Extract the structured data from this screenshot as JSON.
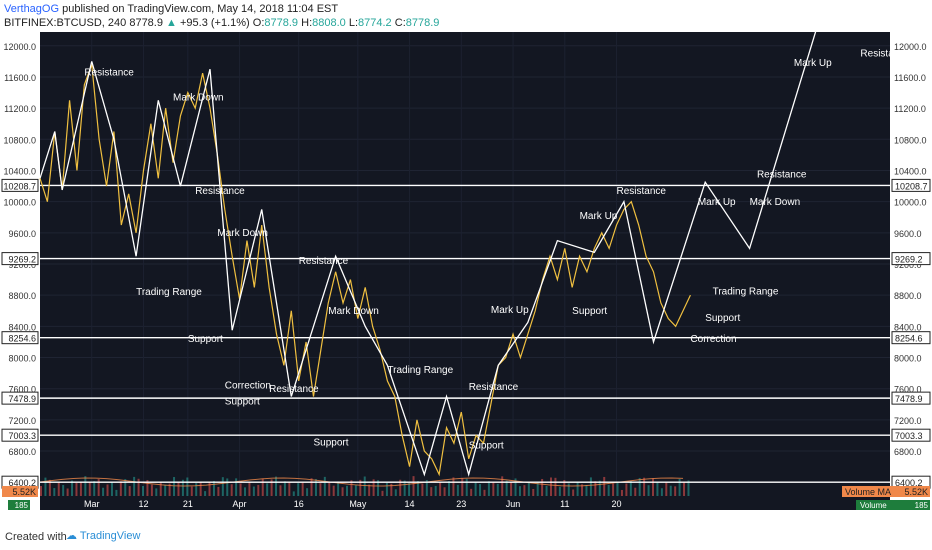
{
  "header": {
    "author": "VerthagOG",
    "published_text": " published on TradingView.com, May 14, 2018 11:04 EST",
    "symbol": "BITFINEX:BTCUSD, 240",
    "last_price": "8778.9",
    "change": "+95.3 (+1.1%)",
    "o_label": "O:",
    "o_val": "8778.9",
    "h_label": "H:",
    "h_val": "8808.0",
    "l_label": "L:",
    "l_val": "8774.2",
    "c_label": "C:",
    "c_val": "8778.9"
  },
  "footer": {
    "created_with": "Created with",
    "brand": "TradingView"
  },
  "colors": {
    "background": "#131722",
    "price_line": "#f0c040",
    "pattern_line": "#ffffff",
    "volume_up": "#26a69a",
    "volume_down": "#ef5350",
    "volume_ma": "#f0884a"
  },
  "chart_data": {
    "type": "line",
    "y_ticks": [
      "12000.0",
      "11600.0",
      "11200.0",
      "10800.0",
      "10400.0",
      "10000.0",
      "9600.0",
      "9200.0",
      "8800.0",
      "8400.0",
      "8000.0",
      "7600.0",
      "7200.0",
      "6800.0",
      "6400.0"
    ],
    "ylim": [
      6300,
      12100
    ],
    "x_ticks": [
      "Mar",
      "12",
      "21",
      "Apr",
      "16",
      "May",
      "14",
      "23",
      "Jun",
      "11",
      "20"
    ],
    "horizontal_levels": [
      "10208.7",
      "9269.2",
      "8254.6",
      "7478.9",
      "7003.3",
      "6400.2"
    ],
    "volume": {
      "ma_label": "Volume MA",
      "ma_value": "5.52K",
      "label": "Volume",
      "value": "185"
    },
    "price_series": {
      "points": [
        [
          0,
          10300
        ],
        [
          2,
          10000
        ],
        [
          4,
          10900
        ],
        [
          6,
          10150
        ],
        [
          8,
          11300
        ],
        [
          10,
          10400
        ],
        [
          12,
          11500
        ],
        [
          14,
          11760
        ],
        [
          16,
          10800
        ],
        [
          18,
          10200
        ],
        [
          20,
          10900
        ],
        [
          22,
          9700
        ],
        [
          24,
          10100
        ],
        [
          26,
          9600
        ],
        [
          28,
          10400
        ],
        [
          30,
          11000
        ],
        [
          32,
          10300
        ],
        [
          34,
          11200
        ],
        [
          36,
          10500
        ],
        [
          38,
          11100
        ],
        [
          40,
          11400
        ],
        [
          42,
          11200
        ],
        [
          44,
          11650
        ],
        [
          46,
          11200
        ],
        [
          48,
          10600
        ],
        [
          50,
          9900
        ],
        [
          52,
          9300
        ],
        [
          54,
          8750
        ],
        [
          56,
          9500
        ],
        [
          58,
          8900
        ],
        [
          60,
          9700
        ],
        [
          62,
          8900
        ],
        [
          64,
          8300
        ],
        [
          66,
          7900
        ],
        [
          68,
          8600
        ],
        [
          70,
          7700
        ],
        [
          72,
          8200
        ],
        [
          74,
          7500
        ],
        [
          76,
          8100
        ],
        [
          78,
          8700
        ],
        [
          80,
          9100
        ],
        [
          82,
          8700
        ],
        [
          84,
          9000
        ],
        [
          86,
          8500
        ],
        [
          88,
          8900
        ],
        [
          90,
          8400
        ],
        [
          92,
          8100
        ],
        [
          94,
          7700
        ],
        [
          96,
          7500
        ],
        [
          98,
          7000
        ],
        [
          100,
          6600
        ],
        [
          102,
          7200
        ],
        [
          104,
          6800
        ],
        [
          106,
          6700
        ],
        [
          108,
          6500
        ],
        [
          110,
          7100
        ],
        [
          112,
          6900
        ],
        [
          114,
          7300
        ],
        [
          116,
          6700
        ],
        [
          118,
          7000
        ],
        [
          120,
          6900
        ],
        [
          122,
          7400
        ],
        [
          124,
          7900
        ],
        [
          126,
          8000
        ],
        [
          128,
          8300
        ],
        [
          130,
          8000
        ],
        [
          132,
          8300
        ],
        [
          134,
          8600
        ],
        [
          136,
          9000
        ],
        [
          138,
          9300
        ],
        [
          140,
          9000
        ],
        [
          142,
          9400
        ],
        [
          144,
          8900
        ],
        [
          146,
          9300
        ],
        [
          148,
          9100
        ],
        [
          150,
          9400
        ],
        [
          152,
          9600
        ],
        [
          154,
          9400
        ],
        [
          156,
          9700
        ],
        [
          158,
          9900
        ],
        [
          160,
          10000
        ],
        [
          162,
          9700
        ],
        [
          164,
          9300
        ],
        [
          166,
          9100
        ],
        [
          168,
          8700
        ],
        [
          170,
          8500
        ],
        [
          172,
          8400
        ],
        [
          174,
          8600
        ],
        [
          176,
          8800
        ]
      ]
    },
    "pattern_line": {
      "points": [
        [
          0,
          10300
        ],
        [
          4,
          10900
        ],
        [
          6,
          10150
        ],
        [
          14,
          11800
        ],
        [
          20,
          10800
        ],
        [
          26,
          9300
        ],
        [
          32,
          11300
        ],
        [
          38,
          10200
        ],
        [
          46,
          11700
        ],
        [
          52,
          8350
        ],
        [
          60,
          9900
        ],
        [
          68,
          7500
        ],
        [
          80,
          9300
        ],
        [
          88,
          8400
        ],
        [
          94,
          7900
        ],
        [
          104,
          6500
        ],
        [
          110,
          7500
        ],
        [
          116,
          6500
        ],
        [
          124,
          7900
        ],
        [
          132,
          8450
        ],
        [
          140,
          9500
        ],
        [
          150,
          9350
        ],
        [
          158,
          10000
        ],
        [
          166,
          8200
        ],
        [
          180,
          10250
        ],
        [
          192,
          9400
        ],
        [
          210,
          12200
        ]
      ]
    },
    "annotations": [
      {
        "text": "Resistance",
        "x": 12,
        "y": 11620
      },
      {
        "text": "Mark Down",
        "x": 36,
        "y": 11300
      },
      {
        "text": "Resistance",
        "x": 42,
        "y": 10100
      },
      {
        "text": "Mark Down",
        "x": 48,
        "y": 9560
      },
      {
        "text": "Trading Range",
        "x": 26,
        "y": 8800
      },
      {
        "text": "Resistance",
        "x": 70,
        "y": 9200
      },
      {
        "text": "Mark Down",
        "x": 78,
        "y": 8560
      },
      {
        "text": "Support",
        "x": 40,
        "y": 8200
      },
      {
        "text": "Correction",
        "x": 50,
        "y": 7600
      },
      {
        "text": "Support",
        "x": 50,
        "y": 7400
      },
      {
        "text": "Resistance",
        "x": 62,
        "y": 7560
      },
      {
        "text": "Trading Range",
        "x": 94,
        "y": 7800
      },
      {
        "text": "Support",
        "x": 74,
        "y": 6870
      },
      {
        "text": "Resistance",
        "x": 116,
        "y": 7580
      },
      {
        "text": "Support",
        "x": 116,
        "y": 6830
      },
      {
        "text": "Mark Up",
        "x": 122,
        "y": 8570
      },
      {
        "text": "Support",
        "x": 144,
        "y": 8560
      },
      {
        "text": "Mark Up",
        "x": 146,
        "y": 9780
      },
      {
        "text": "Resistance",
        "x": 156,
        "y": 10100
      },
      {
        "text": "Mark Up",
        "x": 178,
        "y": 9960
      },
      {
        "text": "Trading Range",
        "x": 182,
        "y": 8810
      },
      {
        "text": "Support",
        "x": 180,
        "y": 8470
      },
      {
        "text": "Correction",
        "x": 176,
        "y": 8200
      },
      {
        "text": "Resistance",
        "x": 194,
        "y": 10310
      },
      {
        "text": "Mark Down",
        "x": 192,
        "y": 9960
      },
      {
        "text": "Mark Up",
        "x": 204,
        "y": 11740
      },
      {
        "text": "Resistance",
        "x": 222,
        "y": 11860
      }
    ]
  }
}
